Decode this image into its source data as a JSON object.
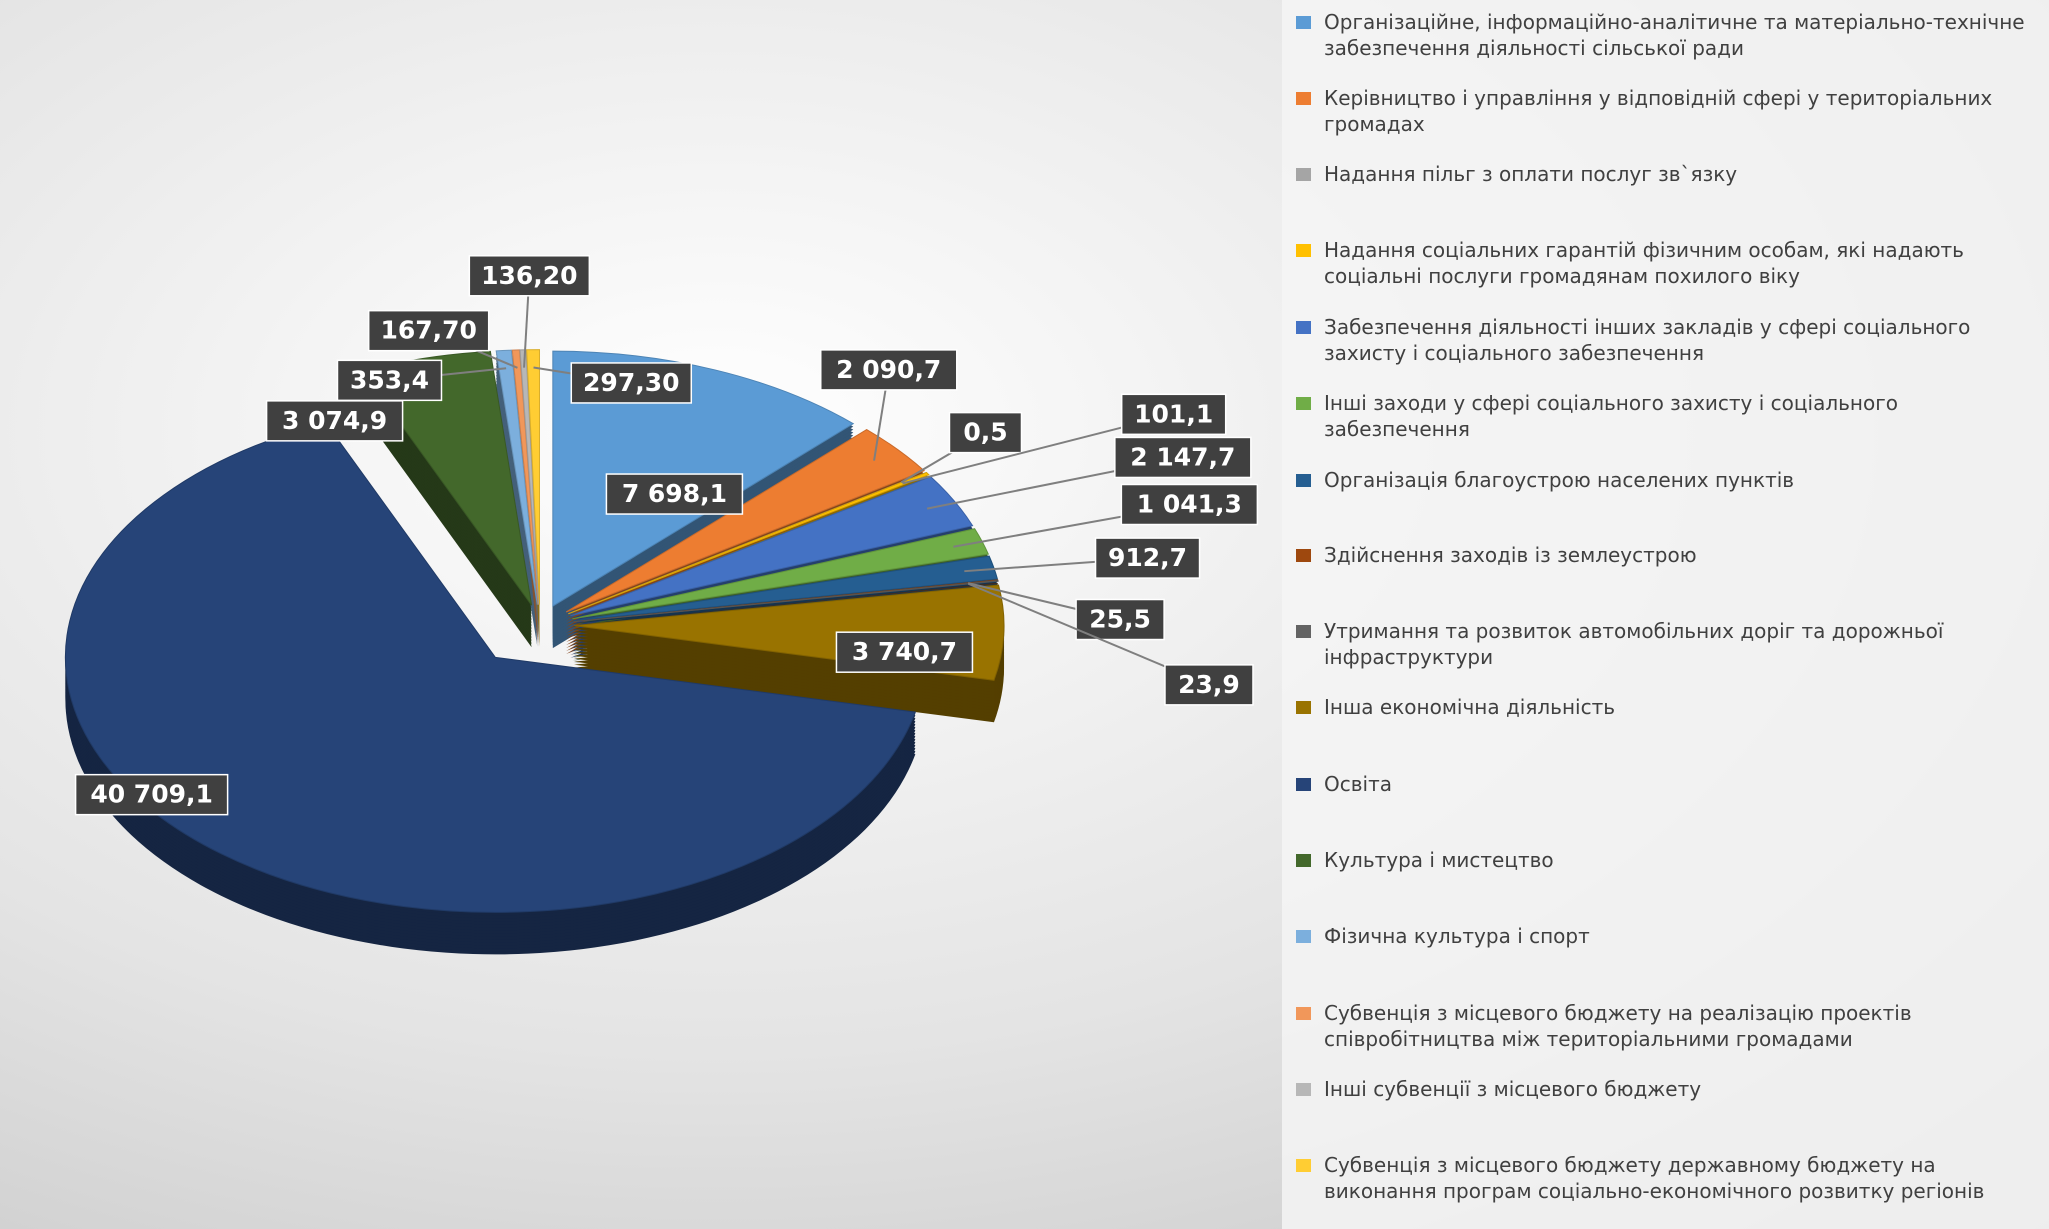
{
  "chart_data": {
    "type": "pie",
    "categories": [
      "Організаційне, інформаційно-аналітичне та матеріально-технічне забезпечення діяльності сільської ради",
      "Керівництво і управління у відповідній сфері у територіальних громадах",
      "Надання пільг з оплати послуг зв`язку",
      "Надання соціальних гарантій фізичним особам, які надають соціальні послуги громадянам похилого віку",
      "Забезпечення діяльності інших закладів у сфері соціального захисту і соціального забезпечення",
      "Інші заходи у сфері соціального захисту і соціального забезпечення",
      "Організація благоустрою населених пунктів",
      "Здійснення заходів із землеустрою",
      "Утримання та розвиток автомобільних доріг та дорожньої інфраструктури",
      "Інша економічна діяльність",
      "Освіта",
      "Культура і мистецтво",
      "Фізична культура і спорт",
      "Субвенція з місцевого бюджету на реалізацію проектів співробітництва між територіальними громадами",
      "Інші субвенції з місцевого бюджету",
      "Субвенція з місцевого бюджету державному бюджету на виконання програм соціально-економічного розвитку регіонів"
    ],
    "values": [
      7698.1,
      2090.7,
      0.5,
      101.1,
      2147.7,
      1041.3,
      912.7,
      25.5,
      23.9,
      3740.7,
      40709.1,
      3074.9,
      353.4,
      167.7,
      136.2,
      297.3
    ],
    "value_labels": [
      "7 698,1",
      "2 090,7",
      "0,5",
      "101,1",
      "2 147,7",
      "1 041,3",
      "912,7",
      "25,5",
      "23,9",
      "3 740,7",
      "40 709,1",
      "3 074,9",
      "353,4",
      "167,70",
      "136,20",
      "297,30"
    ],
    "colors": [
      "#5b9bd5",
      "#ed7d31",
      "#a5a5a5",
      "#ffc000",
      "#4472c4",
      "#70ad47",
      "#255e91",
      "#9e480e",
      "#636363",
      "#997300",
      "#264478",
      "#43682b",
      "#7cafdd",
      "#f1975a",
      "#b7b7b7",
      "#ffcd33"
    ]
  }
}
